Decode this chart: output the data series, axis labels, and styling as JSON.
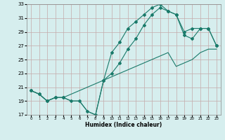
{
  "xlabel": "Humidex (Indice chaleur)",
  "xlim": [
    -0.5,
    23.5
  ],
  "ylim": [
    17,
    33
  ],
  "xticks": [
    0,
    1,
    2,
    3,
    4,
    5,
    6,
    7,
    8,
    9,
    10,
    11,
    12,
    13,
    14,
    15,
    16,
    17,
    18,
    19,
    20,
    21,
    22,
    23
  ],
  "yticks": [
    17,
    19,
    21,
    23,
    25,
    27,
    29,
    31,
    33
  ],
  "line_color": "#1a7a6a",
  "background_color": "#d6eeee",
  "grid_color": "#c4aaaa",
  "line1_x": [
    0,
    1,
    2,
    3,
    4,
    5,
    6,
    7,
    8,
    9,
    10,
    11,
    12,
    13,
    14,
    15,
    16,
    17,
    18,
    19,
    20,
    21,
    22,
    23
  ],
  "line1_y": [
    20.5,
    20.0,
    19.0,
    19.5,
    19.5,
    19.0,
    19.0,
    17.5,
    17.0,
    22.0,
    26.0,
    27.5,
    29.5,
    30.5,
    31.5,
    32.5,
    33.0,
    32.0,
    31.5,
    28.5,
    28.0,
    29.5,
    29.5,
    27.0
  ],
  "line2_x": [
    0,
    1,
    2,
    3,
    4,
    9,
    10,
    11,
    12,
    13,
    14,
    15,
    16,
    17,
    18,
    19,
    20,
    21,
    22,
    23
  ],
  "line2_y": [
    20.5,
    20.0,
    19.0,
    19.5,
    19.5,
    22.0,
    23.0,
    24.5,
    26.5,
    28.0,
    30.0,
    31.5,
    32.5,
    32.0,
    31.5,
    29.0,
    29.5,
    29.5,
    29.5,
    27.0
  ],
  "line3_x": [
    0,
    1,
    2,
    3,
    4,
    5,
    6,
    7,
    8,
    9,
    10,
    11,
    12,
    13,
    14,
    15,
    16,
    17,
    18,
    19,
    20,
    21,
    22,
    23
  ],
  "line3_y": [
    20.5,
    20.0,
    19.0,
    19.5,
    19.5,
    19.0,
    19.0,
    17.5,
    17.0,
    22.0,
    22.5,
    23.0,
    23.5,
    24.0,
    24.5,
    25.0,
    25.5,
    26.0,
    24.0,
    24.5,
    25.0,
    26.0,
    26.5,
    26.5
  ]
}
